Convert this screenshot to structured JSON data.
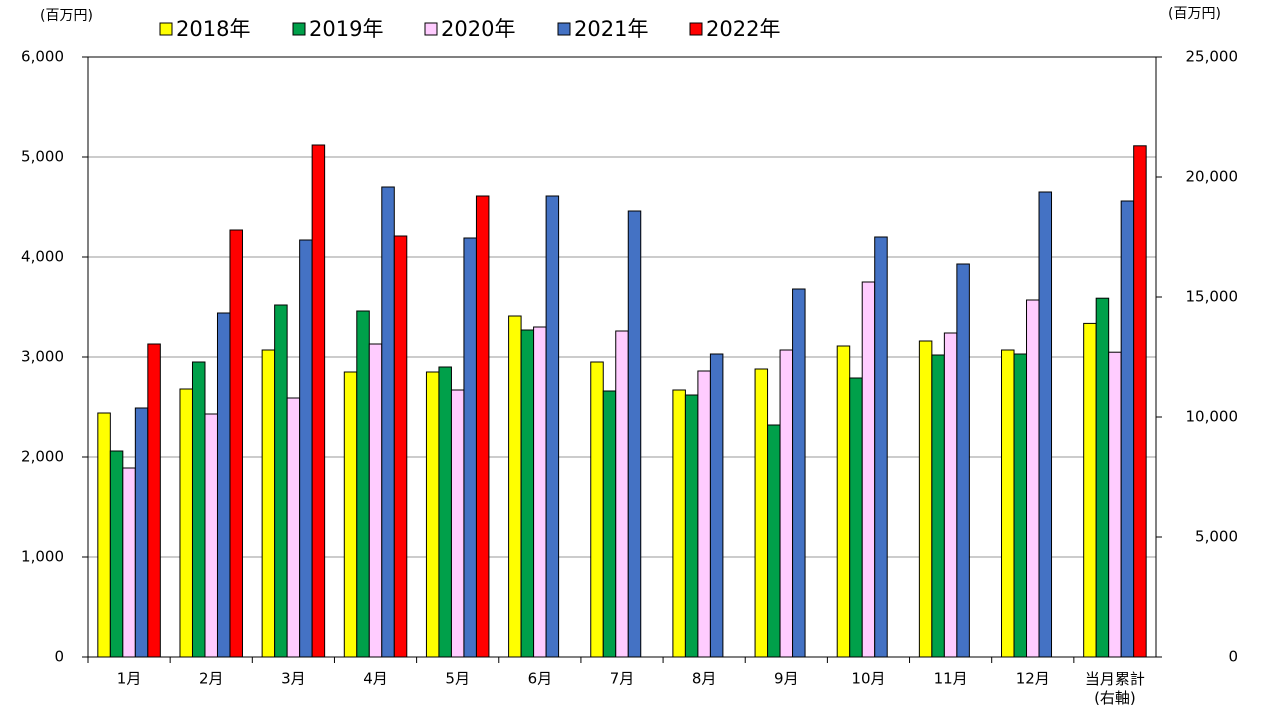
{
  "chart_data": {
    "type": "bar",
    "y_unit": "(百万円)",
    "y2_unit": "(百万円)",
    "categories": [
      "1月",
      "2月",
      "3月",
      "4月",
      "5月",
      "6月",
      "7月",
      "8月",
      "9月",
      "10月",
      "11月",
      "12月",
      "当月累計\n(右軸)"
    ],
    "series": [
      {
        "name": "2018年",
        "color": "#ffff00",
        "values": [
          2440,
          2680,
          3070,
          2850,
          2850,
          3410,
          2950,
          2670,
          2880,
          3110,
          3160,
          3070,
          null
        ]
      },
      {
        "name": "2019年",
        "color": "#00a04a",
        "values": [
          2060,
          2950,
          3520,
          3460,
          2900,
          3270,
          2660,
          2620,
          2320,
          2790,
          3020,
          3030,
          null
        ]
      },
      {
        "name": "2020年",
        "color": "#ffccff",
        "values": [
          1890,
          2430,
          2590,
          3130,
          2670,
          3300,
          3260,
          2860,
          3070,
          3750,
          3240,
          3570,
          null
        ]
      },
      {
        "name": "2021年",
        "color": "#4472c4",
        "values": [
          2490,
          3440,
          4170,
          4700,
          4190,
          4610,
          4460,
          3030,
          3680,
          4200,
          3930,
          4650,
          null
        ]
      },
      {
        "name": "2022年",
        "color": "#ff0000",
        "values": [
          3130,
          4270,
          5120,
          4210,
          4610,
          null,
          null,
          null,
          null,
          null,
          null,
          null,
          null
        ]
      },
      {
        "color": "#ffff00",
        "axis": "y2",
        "values": [
          null,
          null,
          null,
          null,
          null,
          null,
          null,
          null,
          null,
          null,
          null,
          null,
          13900
        ]
      },
      {
        "color": "#00a04a",
        "axis": "y2",
        "values": [
          null,
          null,
          null,
          null,
          null,
          null,
          null,
          null,
          null,
          null,
          null,
          null,
          14950
        ]
      },
      {
        "color": "#ffccff",
        "axis": "y2",
        "values": [
          null,
          null,
          null,
          null,
          null,
          null,
          null,
          null,
          null,
          null,
          null,
          null,
          12700
        ]
      },
      {
        "color": "#4472c4",
        "axis": "y2",
        "values": [
          null,
          null,
          null,
          null,
          null,
          null,
          null,
          null,
          null,
          null,
          null,
          null,
          19000
        ]
      },
      {
        "color": "#ff0000",
        "axis": "y2",
        "values": [
          null,
          null,
          null,
          null,
          null,
          null,
          null,
          null,
          null,
          null,
          null,
          null,
          21300
        ]
      }
    ],
    "ylim": [
      0,
      6000
    ],
    "yticks": [
      0,
      {
        "value": 1000,
        "label": "1,000"
      },
      {
        "value": 2000,
        "label": "2,000"
      },
      {
        "value": 3000,
        "label": "3,000"
      },
      {
        "value": 4000,
        "label": "4,000"
      },
      {
        "value": 5000,
        "label": "5,000"
      },
      {
        "value": 6000,
        "label": "6,000"
      }
    ],
    "y2lim": [
      0,
      25000
    ],
    "y2ticks": [
      0,
      {
        "value": 5000,
        "label": "5,000"
      },
      {
        "value": 10000,
        "label": "10,000"
      },
      {
        "value": 15000,
        "label": "15,000"
      },
      {
        "value": 20000,
        "label": "20,000"
      },
      {
        "value": 25000,
        "label": "25,000"
      }
    ],
    "grid": true,
    "legend": "top"
  }
}
